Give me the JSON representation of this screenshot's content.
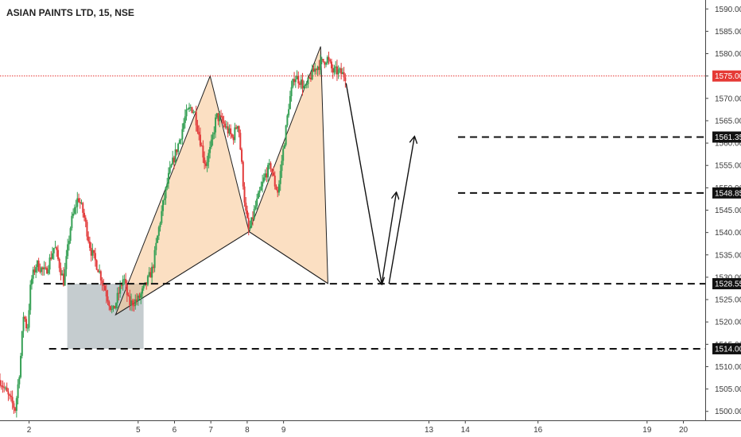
{
  "title": "ASIAN PAINTS LTD, 15, NSE",
  "colors": {
    "up": "#36a055",
    "down": "#e23b3b",
    "pattern_fill": "#f8c58f",
    "zone_fill": "#8f9ea3",
    "current_price_line": "#e53935",
    "badge_bg": "#e53935",
    "level_line": "#111111"
  },
  "chart_data": {
    "type": "candlestick",
    "title": "ASIAN PAINTS LTD, 15, NSE",
    "ylim": [
      1498,
      1592
    ],
    "xlim": [
      1.2,
      20.6
    ],
    "y_ticks": [
      1500,
      1505,
      1510,
      1515,
      1520,
      1525,
      1530,
      1535,
      1540,
      1545,
      1550,
      1555,
      1560,
      1565,
      1570,
      1575,
      1580,
      1585,
      1590
    ],
    "x_ticks": [
      {
        "value": 2,
        "label": "2"
      },
      {
        "value": 5,
        "label": "5"
      },
      {
        "value": 6,
        "label": "6"
      },
      {
        "value": 7,
        "label": "7"
      },
      {
        "value": 8,
        "label": "8"
      },
      {
        "value": 9,
        "label": "9"
      },
      {
        "value": 13,
        "label": "13"
      },
      {
        "value": 14,
        "label": "14"
      },
      {
        "value": 16,
        "label": "16"
      },
      {
        "value": 19,
        "label": "19"
      },
      {
        "value": 20,
        "label": "20"
      }
    ],
    "current_price": {
      "value": 1575.0,
      "label": "1575.00"
    },
    "levels": [
      {
        "value": 1561.35,
        "label": "1561.35",
        "from_x": 13.8
      },
      {
        "value": 1548.85,
        "label": "1548.85",
        "from_x": 13.8
      },
      {
        "value": 1528.55,
        "label": "1528.55",
        "from_x": 2.4
      },
      {
        "value": 1514.0,
        "label": "1514.00",
        "from_x": 2.55
      }
    ],
    "price_path": [
      [
        1.2,
        1507
      ],
      [
        1.45,
        1503
      ],
      [
        1.62,
        1500.5
      ],
      [
        1.75,
        1510
      ],
      [
        1.85,
        1522
      ],
      [
        1.95,
        1518
      ],
      [
        2.05,
        1529
      ],
      [
        2.2,
        1533
      ],
      [
        2.45,
        1531
      ],
      [
        2.7,
        1537
      ],
      [
        2.95,
        1529
      ],
      [
        3.15,
        1542
      ],
      [
        3.35,
        1548
      ],
      [
        3.5,
        1544
      ],
      [
        3.7,
        1536
      ],
      [
        3.9,
        1532
      ],
      [
        4.1,
        1527
      ],
      [
        4.3,
        1522
      ],
      [
        4.45,
        1526
      ],
      [
        4.6,
        1530
      ],
      [
        4.75,
        1524
      ],
      [
        5.0,
        1525
      ],
      [
        5.2,
        1528
      ],
      [
        5.4,
        1532
      ],
      [
        5.55,
        1540
      ],
      [
        5.7,
        1547
      ],
      [
        5.85,
        1553
      ],
      [
        6.0,
        1557
      ],
      [
        6.15,
        1561
      ],
      [
        6.3,
        1566
      ],
      [
        6.45,
        1568
      ],
      [
        6.55,
        1567
      ],
      [
        6.7,
        1561
      ],
      [
        6.85,
        1555
      ],
      [
        7.0,
        1559
      ],
      [
        7.15,
        1566
      ],
      [
        7.3,
        1565
      ],
      [
        7.45,
        1563
      ],
      [
        7.6,
        1561
      ],
      [
        7.75,
        1565
      ],
      [
        7.85,
        1555
      ],
      [
        7.95,
        1545
      ],
      [
        8.05,
        1540
      ],
      [
        8.2,
        1545
      ],
      [
        8.35,
        1549
      ],
      [
        8.5,
        1553
      ],
      [
        8.65,
        1555
      ],
      [
        8.75,
        1551
      ],
      [
        8.85,
        1549
      ],
      [
        8.95,
        1556
      ],
      [
        9.05,
        1562
      ],
      [
        9.15,
        1569
      ],
      [
        9.3,
        1575
      ],
      [
        9.45,
        1574
      ],
      [
        9.6,
        1572
      ],
      [
        9.75,
        1575
      ],
      [
        9.9,
        1577
      ],
      [
        10.05,
        1578
      ],
      [
        10.2,
        1579
      ],
      [
        10.35,
        1576
      ],
      [
        10.5,
        1576
      ],
      [
        10.7,
        1575
      ]
    ],
    "harmonic_pattern": {
      "points": [
        {
          "x": 4.38,
          "y": 1521.6
        },
        {
          "x": 6.98,
          "y": 1575.0
        },
        {
          "x": 8.05,
          "y": 1540.2
        },
        {
          "x": 10.02,
          "y": 1581.6
        },
        {
          "x": 10.22,
          "y": 1528.6
        }
      ]
    },
    "demand_zone": {
      "x0": 3.05,
      "x1": 5.15,
      "y0": 1514.0,
      "y1": 1528.55
    },
    "projection_arrows": [
      {
        "from": [
          10.72,
          1573.4
        ],
        "to": [
          11.7,
          1528.55
        ]
      },
      {
        "from": [
          11.7,
          1528.55
        ],
        "to": [
          12.1,
          1548.85
        ]
      },
      {
        "from": [
          11.9,
          1528.55
        ],
        "to": [
          12.6,
          1561.35
        ]
      }
    ]
  }
}
